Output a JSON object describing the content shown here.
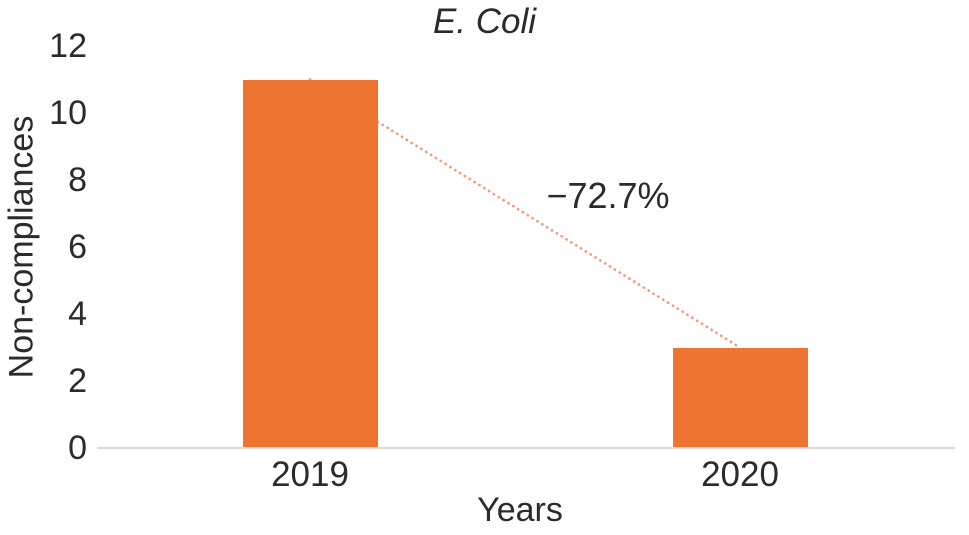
{
  "chart_data": {
    "type": "bar",
    "title": "E. Coli",
    "xlabel": "Years",
    "ylabel": "Non-compliances",
    "categories": [
      "2019",
      "2020"
    ],
    "values": [
      11,
      3
    ],
    "yticks": [
      0,
      2,
      4,
      6,
      8,
      10,
      12
    ],
    "ylim": [
      0,
      12
    ],
    "grid": false,
    "legend_position": "none",
    "annotation": {
      "label": "−72.7%"
    },
    "trendline": {
      "style": "dotted",
      "connects": [
        "2019",
        "2020"
      ],
      "color": "#f49b78"
    },
    "colors": {
      "bar": "#ee7431",
      "axis_line": "#d9d9d9",
      "text": "#2b2b2b"
    }
  }
}
